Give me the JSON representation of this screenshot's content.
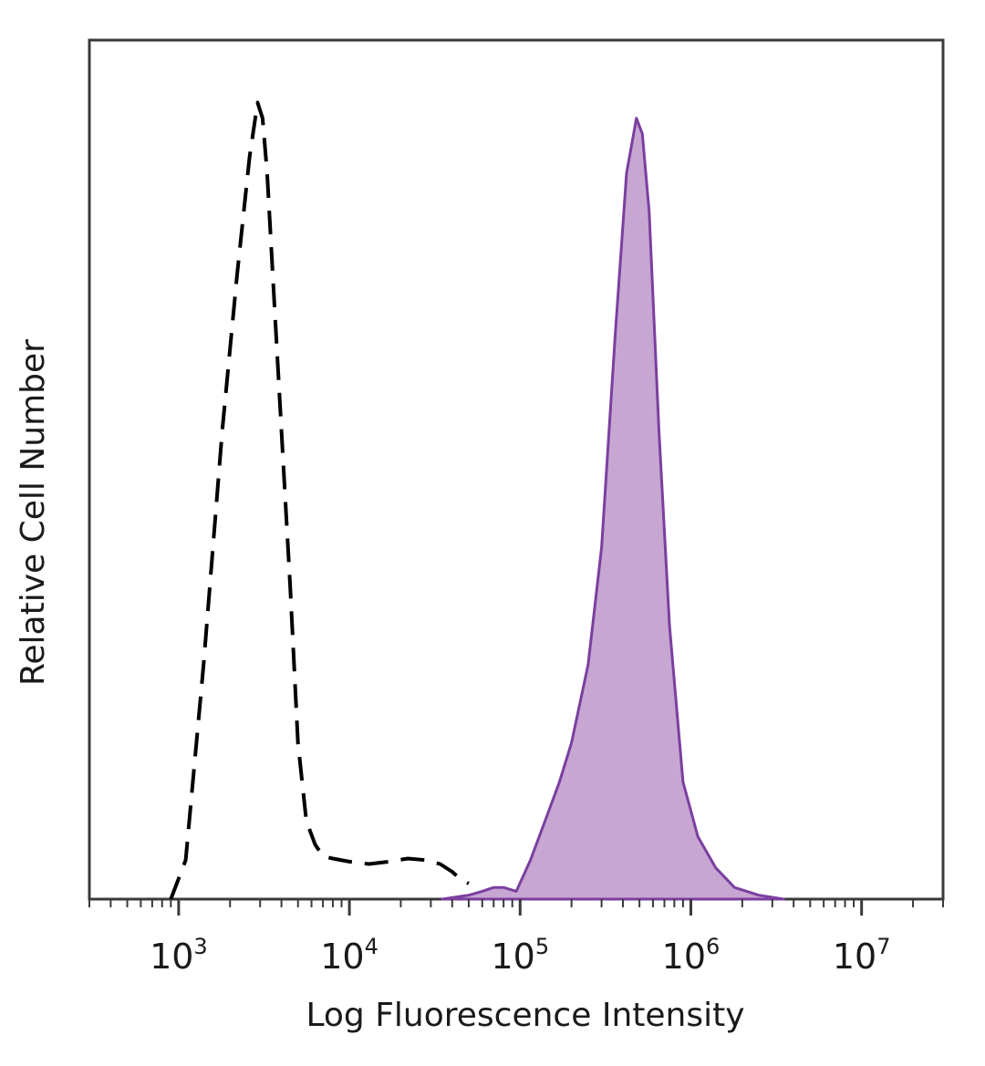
{
  "chart_data": {
    "type": "area",
    "xlabel": "Log Fluorescence Intensity",
    "ylabel": "Relative Cell Number",
    "x_scale": "log",
    "xlim": [
      300,
      30000000
    ],
    "ylim": [
      0,
      1.1
    ],
    "grid": false,
    "x_ticks": [
      {
        "value": 1000,
        "base": "10",
        "exp": "3"
      },
      {
        "value": 10000,
        "base": "10",
        "exp": "4"
      },
      {
        "value": 100000,
        "base": "10",
        "exp": "5"
      },
      {
        "value": 1000000,
        "base": "10",
        "exp": "6"
      },
      {
        "value": 10000000,
        "base": "10",
        "exp": "7"
      }
    ],
    "series": [
      {
        "style": "dashed",
        "color": "#000000",
        "x": [
          900,
          1100,
          1400,
          1800,
          2200,
          2600,
          2900,
          3100,
          3300,
          3600,
          4000,
          4500,
          5000,
          5600,
          6300,
          7000,
          8000,
          10000,
          13000,
          17000,
          22000,
          28000,
          34000,
          40000,
          45000,
          50000
        ],
        "y": [
          0.0,
          0.05,
          0.3,
          0.6,
          0.8,
          0.95,
          1.02,
          1.0,
          0.93,
          0.78,
          0.6,
          0.4,
          0.2,
          0.1,
          0.07,
          0.055,
          0.052,
          0.048,
          0.045,
          0.048,
          0.052,
          0.05,
          0.045,
          0.035,
          0.025,
          0.02
        ]
      },
      {
        "style": "filled",
        "color": "#7b3fa0",
        "fill": "#c7a6d2",
        "x": [
          35000,
          50000,
          60000,
          70000,
          80000,
          95000,
          115000,
          140000,
          170000,
          200000,
          250000,
          300000,
          360000,
          420000,
          480000,
          520000,
          570000,
          650000,
          750000,
          900000,
          1100000,
          1400000,
          1800000,
          2500000,
          3500000
        ],
        "y": [
          0.0,
          0.005,
          0.01,
          0.015,
          0.015,
          0.01,
          0.05,
          0.1,
          0.15,
          0.2,
          0.3,
          0.45,
          0.72,
          0.93,
          1.0,
          0.98,
          0.88,
          0.6,
          0.35,
          0.15,
          0.08,
          0.04,
          0.015,
          0.005,
          0.0
        ]
      }
    ]
  }
}
